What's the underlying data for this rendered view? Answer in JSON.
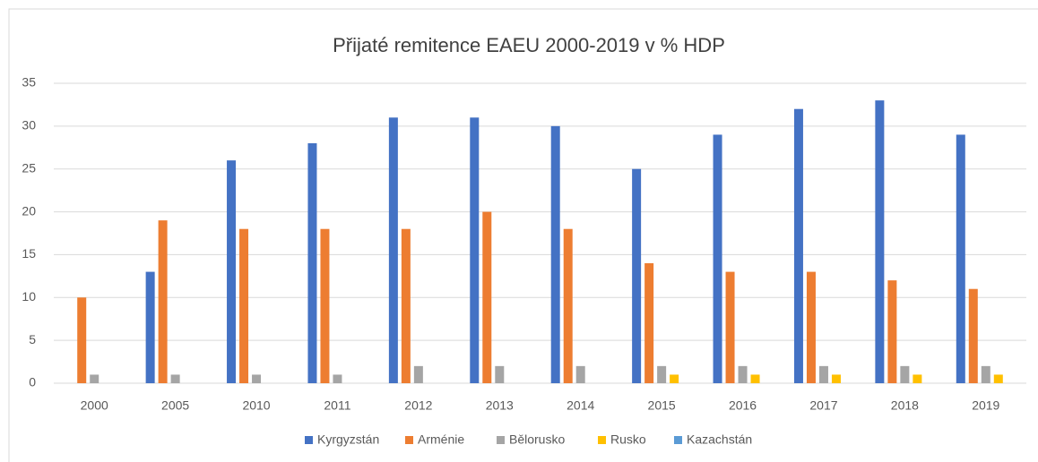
{
  "chart_data": {
    "type": "bar",
    "title": "Přijaté remitence EAEU 2000-2019 v % HDP",
    "categories": [
      "2000",
      "2005",
      "2010",
      "2011",
      "2012",
      "2013",
      "2014",
      "2015",
      "2016",
      "2017",
      "2018",
      "2019"
    ],
    "series": [
      {
        "name": "Kyrgyzstán",
        "color": "#4472c4",
        "values": [
          0,
          13,
          26,
          28,
          31,
          31,
          30,
          25,
          29,
          32,
          33,
          29
        ]
      },
      {
        "name": "Arménie",
        "color": "#ed7d31",
        "values": [
          10,
          19,
          18,
          18,
          18,
          20,
          18,
          14,
          13,
          13,
          12,
          11
        ]
      },
      {
        "name": "Bělorusko",
        "color": "#a5a5a5",
        "values": [
          1,
          1,
          1,
          1,
          2,
          2,
          2,
          2,
          2,
          2,
          2,
          2
        ]
      },
      {
        "name": "Rusko",
        "color": "#ffc000",
        "values": [
          0,
          0,
          0,
          0,
          0,
          0,
          0,
          1,
          1,
          1,
          1,
          1
        ]
      },
      {
        "name": "Kazachstán",
        "color": "#5b9bd5",
        "values": [
          0,
          0,
          0,
          0,
          0,
          0,
          0,
          0,
          0,
          0,
          0,
          0
        ]
      }
    ],
    "ylim": [
      0,
      35
    ],
    "yticks": [
      0,
      5,
      10,
      15,
      20,
      25,
      30,
      35
    ],
    "grid": true,
    "legend": "bottom"
  }
}
